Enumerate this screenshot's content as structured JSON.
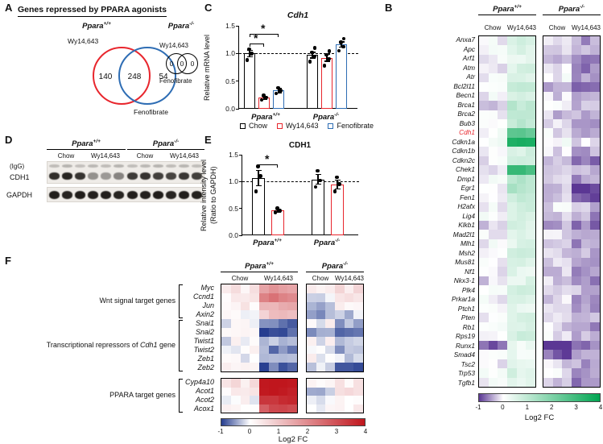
{
  "genotypes": {
    "wt": {
      "base": "Ppara",
      "sup": "+/+"
    },
    "ko": {
      "base": "Ppara",
      "sup": "-/-"
    }
  },
  "panelA": {
    "label": "A",
    "title": "Genes repressed by PPARA agonists",
    "wy_label": "Wy14,643",
    "feno_label": "Fenofibrate",
    "counts": {
      "wy_only": "140",
      "overlap": "248",
      "feno_only": "54"
    },
    "ko_counts": {
      "wy_only": "0",
      "overlap": "0",
      "feno_only": "0"
    },
    "colors": {
      "wy": "#e8262d",
      "feno": "#2e6db4"
    }
  },
  "panelB": {
    "label": "B"
  },
  "panelC": {
    "label": "C"
  },
  "panelD": {
    "label": "D",
    "igg_label": "(IgG)",
    "rows": [
      "CDH1",
      "GAPDH"
    ],
    "col_labels": [
      "Chow",
      "Wy14,643",
      "Chow",
      "Wy14,643"
    ],
    "igg_bands": [
      0.22,
      0.26,
      0.2,
      0.24,
      0.22,
      0.26,
      0.21,
      0.24,
      0.26,
      0.22,
      0.25,
      0.21
    ],
    "cdh1_bands": [
      0.88,
      0.92,
      0.85,
      0.42,
      0.38,
      0.48,
      0.82,
      0.86,
      0.8,
      0.78,
      0.84,
      0.8
    ],
    "gapdh_bands": [
      0.95,
      0.93,
      0.96,
      0.94,
      0.95,
      0.93,
      0.95,
      0.94,
      0.96,
      0.93,
      0.95,
      0.94
    ]
  },
  "panelE": {
    "label": "E"
  },
  "panelF": {
    "label": "F",
    "group_labels": [
      {
        "text": "Wnt signal target genes"
      },
      {
        "prefix": "Transcriptional repressors of ",
        "italic": "Cdh1",
        "suffix": " gene"
      },
      {
        "text": "PPARA target genes"
      }
    ]
  },
  "chart_data": [
    {
      "id": "panel-b-heatmap",
      "type": "heatmap",
      "col_groups": [
        {
          "genotype": "Ppara+/+",
          "conditions": [
            "Chow",
            "Wy14,643"
          ],
          "replicates": 3
        },
        {
          "genotype": "Ppara-/-",
          "conditions": [
            "Chow",
            "Wy14,643"
          ],
          "replicates": 3
        }
      ],
      "rows": [
        "Anxa7",
        "Apc",
        "Arf1",
        "Atm",
        "Atr",
        "Bcl2l11",
        "Becn1",
        "Brca1",
        "Brca2",
        "Bub3",
        "Cdh1",
        "Cdkn1a",
        "Cdkn1b",
        "Cdkn2c",
        "Chek1",
        "Dmp1",
        "Egr1",
        "Fen1",
        "H2afx",
        "Lig4",
        "Klkb1",
        "Mad2l1",
        "Mlh1",
        "Msh2",
        "Mus81",
        "Nf1",
        "Nkx3-1",
        "Plk4",
        "Prkar1a",
        "Ptch1",
        "Pten",
        "Rb1",
        "Rps19",
        "Runx1",
        "Smad4",
        "Tsc2",
        "Trp53",
        "Tgfb1"
      ],
      "highlight_row": "Cdh1",
      "values": [
        [
          0.0,
          0.6,
          -0.2,
          -0.5
        ],
        [
          0.1,
          0.5,
          -0.1,
          -0.4
        ],
        [
          0.0,
          0.4,
          -0.3,
          -0.5
        ],
        [
          -0.1,
          0.6,
          -0.2,
          -0.6
        ],
        [
          0.0,
          0.5,
          0.0,
          -0.4
        ],
        [
          0.1,
          0.9,
          -0.4,
          -0.8
        ],
        [
          0.0,
          0.5,
          -0.2,
          -0.5
        ],
        [
          -0.2,
          1.0,
          -0.1,
          -0.4
        ],
        [
          0.0,
          0.9,
          -0.3,
          -0.5
        ],
        [
          0.0,
          1.0,
          -0.2,
          -0.4
        ],
        [
          0.1,
          2.4,
          -0.1,
          -0.4
        ],
        [
          0.2,
          3.6,
          0.1,
          -0.2
        ],
        [
          0.0,
          0.6,
          -0.2,
          -0.5
        ],
        [
          -0.1,
          0.8,
          -0.3,
          -0.6
        ],
        [
          0.0,
          3.0,
          -0.1,
          -0.3
        ],
        [
          0.1,
          1.2,
          -0.2,
          -0.5
        ],
        [
          -0.1,
          1.2,
          -0.4,
          -1.0
        ],
        [
          -0.1,
          0.8,
          -0.2,
          -0.9
        ],
        [
          0.0,
          0.7,
          -0.1,
          -0.4
        ],
        [
          0.0,
          0.5,
          -0.2,
          -0.5
        ],
        [
          -0.3,
          0.6,
          -0.4,
          -0.7
        ],
        [
          0.0,
          0.6,
          -0.1,
          -0.4
        ],
        [
          0.0,
          0.5,
          -0.2,
          -0.5
        ],
        [
          -0.1,
          0.7,
          -0.2,
          -0.4
        ],
        [
          0.0,
          0.5,
          -0.3,
          -0.5
        ],
        [
          0.0,
          0.4,
          -0.2,
          -0.6
        ],
        [
          -0.2,
          0.5,
          -0.3,
          -0.7
        ],
        [
          0.0,
          0.6,
          -0.1,
          -0.4
        ],
        [
          0.0,
          0.5,
          -0.2,
          -0.5
        ],
        [
          -0.1,
          0.4,
          -0.3,
          -0.6
        ],
        [
          0.0,
          0.5,
          -0.2,
          -0.4
        ],
        [
          0.0,
          0.6,
          -0.2,
          -0.5
        ],
        [
          0.1,
          0.7,
          -0.1,
          -0.3
        ],
        [
          -0.8,
          0.3,
          -1.0,
          -0.6
        ],
        [
          0.0,
          0.3,
          -0.8,
          -0.5
        ],
        [
          0.0,
          0.5,
          -0.2,
          -0.5
        ],
        [
          0.0,
          0.6,
          -0.1,
          -0.4
        ],
        [
          0.0,
          0.5,
          -0.3,
          -0.6
        ]
      ],
      "scale": {
        "min": -1,
        "max": 4,
        "neg": "#5b3794",
        "mid": "#ffffff",
        "pos": "#00a551"
      },
      "colorbar": {
        "ticks": [
          "-1",
          "0",
          "1",
          "2",
          "3",
          "4"
        ],
        "label": "Log2 FC"
      }
    },
    {
      "id": "panel-c-bar",
      "type": "bar",
      "title": "Cdh1",
      "ylabel": "Relative mRNA level",
      "ylim": [
        0,
        1.5
      ],
      "yticks": [
        "0.0",
        "0.5",
        "1.0",
        "1.5"
      ],
      "groups": [
        "Ppara+/+",
        "Ppara-/-"
      ],
      "series": [
        {
          "name": "Chow",
          "color": "#000000",
          "values": [
            1.0,
            0.97
          ],
          "errors": [
            0.06,
            0.05
          ],
          "points": [
            [
              0.88,
              1.0,
              1.08
            ],
            [
              0.85,
              0.95,
              1.02,
              1.1
            ]
          ]
        },
        {
          "name": "Wy14,643",
          "color": "#e8262d",
          "values": [
            0.2,
            0.92
          ],
          "errors": [
            0.03,
            0.06
          ],
          "points": [
            [
              0.16,
              0.2,
              0.24
            ],
            [
              0.78,
              0.9,
              0.98,
              1.04
            ]
          ]
        },
        {
          "name": "Fenofibrate",
          "color": "#2e6db4",
          "values": [
            0.33,
            1.16
          ],
          "errors": [
            0.04,
            0.05
          ],
          "points": [
            [
              0.28,
              0.33,
              0.38
            ],
            [
              1.05,
              1.12,
              1.2,
              1.27
            ]
          ]
        }
      ],
      "reference_line": 1.0,
      "significance": [
        {
          "group": 0,
          "a": 0,
          "b": 1,
          "label": "*"
        },
        {
          "group": 0,
          "a": 0,
          "b": 2,
          "label": "*"
        }
      ]
    },
    {
      "id": "panel-e-bar",
      "type": "bar",
      "title": "CDH1",
      "ylabel": "Relative intensity level",
      "ylabel2": "(Ratio to GAPDH)",
      "ylim": [
        0,
        1.5
      ],
      "yticks": [
        "0.0",
        "0.5",
        "1.0",
        "1.5"
      ],
      "groups": [
        "Ppara+/+",
        "Ppara-/-"
      ],
      "series": [
        {
          "name": "Chow",
          "color": "#000000",
          "values": [
            1.07,
            1.04
          ],
          "errors": [
            0.14,
            0.09
          ],
          "points": [
            [
              0.82,
              1.1,
              1.28
            ],
            [
              0.9,
              1.02,
              1.2
            ]
          ]
        },
        {
          "name": "Wy14,643",
          "color": "#e8262d",
          "values": [
            0.46,
            0.95
          ],
          "errors": [
            0.03,
            0.08
          ],
          "points": [
            [
              0.43,
              0.46,
              0.5
            ],
            [
              0.82,
              0.95,
              1.08
            ]
          ]
        }
      ],
      "reference_line": 1.0,
      "significance": [
        {
          "group": 0,
          "a": 0,
          "b": 1,
          "label": "*"
        }
      ]
    },
    {
      "id": "panel-f-heatmap",
      "type": "heatmap",
      "col_groups": [
        {
          "genotype": "Ppara+/+",
          "conditions": [
            "Chow",
            "Wy14,643"
          ],
          "replicates": 4
        },
        {
          "genotype": "Ppara-/-",
          "conditions": [
            "Chow",
            "Wy14,643"
          ],
          "replicates": 3
        }
      ],
      "row_groups": [
        {
          "label": "Wnt signal target genes",
          "rows": [
            "Myc",
            "Ccnd1",
            "Jun",
            "Axin2"
          ]
        },
        {
          "label": "Transcriptional repressors of Cdh1 gene",
          "rows": [
            "Snai1",
            "Snai2",
            "Twist1",
            "Twist2",
            "Zeb1",
            "Zeb2"
          ]
        },
        {
          "label": "PPARA target genes",
          "rows": [
            "Cyp4a10",
            "Acot1",
            "Acot2",
            "Acox1"
          ]
        }
      ],
      "values": {
        "Myc": [
          0.4,
          1.6,
          0.2,
          0.5
        ],
        "Ccnd1": [
          0.3,
          2.2,
          0.0,
          0.4
        ],
        "Jun": [
          0.35,
          1.4,
          -0.3,
          0.4
        ],
        "Axin2": [
          0.1,
          1.0,
          -0.6,
          -0.2
        ],
        "Snai1": [
          0.0,
          -0.7,
          0.1,
          -0.3
        ],
        "Snai2": [
          0.2,
          -1.0,
          -0.45,
          -0.8
        ],
        "Twist1": [
          0.0,
          -0.5,
          0.05,
          -0.4
        ],
        "Twist2": [
          0.1,
          -0.6,
          -0.2,
          -0.5
        ],
        "Zeb1": [
          0.0,
          -0.5,
          0.1,
          -0.35
        ],
        "Zeb2": [
          0.2,
          -0.8,
          -0.25,
          -0.7
        ],
        "Cyp4a10": [
          0.5,
          4.0,
          0.05,
          0.3
        ],
        "Acot1": [
          0.3,
          4.0,
          -0.2,
          0.5
        ],
        "Acot2": [
          0.15,
          3.6,
          0.0,
          0.3
        ],
        "Acox1": [
          0.2,
          3.0,
          -0.1,
          0.25
        ]
      },
      "scale": {
        "min": -1,
        "max": 4,
        "neg": "#253d8f",
        "mid": "#ffffff",
        "pos": "#c0161d"
      },
      "colorbar": {
        "ticks": [
          "-1",
          "0",
          "1",
          "2",
          "3",
          "4"
        ],
        "label": "Log2 FC"
      }
    }
  ]
}
